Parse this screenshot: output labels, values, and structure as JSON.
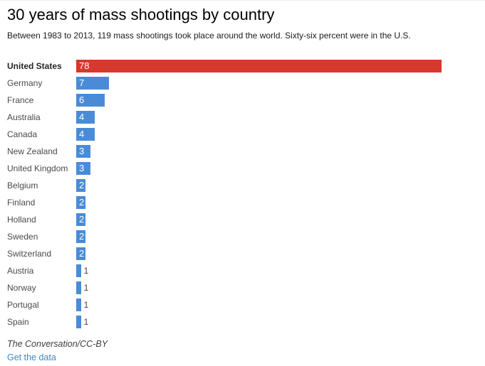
{
  "page": {
    "title": "30 years of mass shootings by country",
    "subtitle": "Between 1983 to 2013, 119 mass shootings took place around the world. Sixty-six percent were in the U.S.",
    "footer": {
      "credit": "The Conversation/CC-BY",
      "link_label": "Get the data"
    }
  },
  "colors": {
    "highlight_bar": "#d6392d",
    "default_bar": "#4a8bd8",
    "value_inside": "#ffffff",
    "value_outside": "#444444",
    "label": "#4a4a4a",
    "highlight_label": "#262626",
    "link": "#3d88c8"
  },
  "chart_data": {
    "type": "bar",
    "orientation": "horizontal",
    "title": "30 years of mass shootings by country",
    "subtitle": "Between 1983 to 2013, 119 mass shootings took place around the world. Sixty-six percent were in the U.S.",
    "categories": [
      "United States",
      "Germany",
      "France",
      "Australia",
      "Canada",
      "New Zealand",
      "United Kingdom",
      "Belgium",
      "Finland",
      "Holland",
      "Sweden",
      "Switzerland",
      "Austria",
      "Norway",
      "Portugal",
      "Spain"
    ],
    "values": [
      78,
      7,
      6,
      4,
      4,
      3,
      3,
      2,
      2,
      2,
      2,
      2,
      1,
      1,
      1,
      1
    ],
    "value_labels_shown": true,
    "highlight_category": "United States",
    "xlim": [
      0,
      78
    ],
    "grid": false,
    "legend": "none",
    "source": "The Conversation/CC-BY"
  }
}
